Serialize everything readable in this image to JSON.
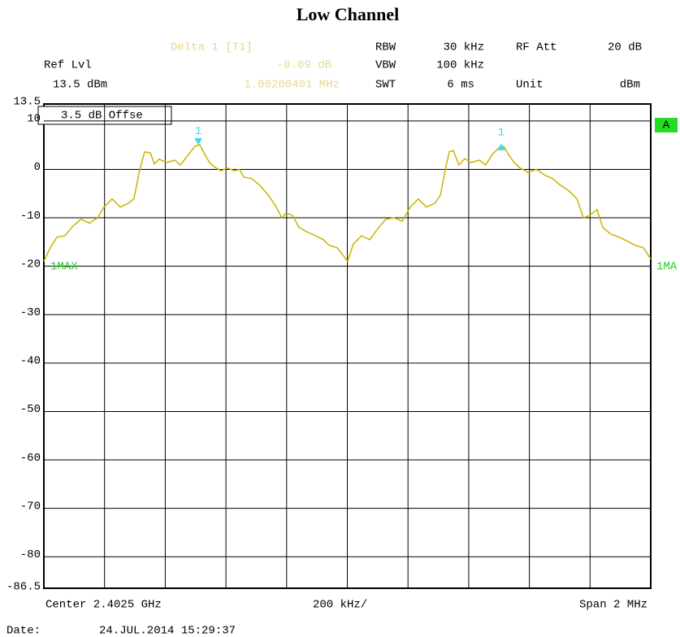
{
  "chart_data": {
    "type": "line",
    "title": "Low Channel",
    "x": [
      2401.5,
      2401.521,
      2401.543,
      2401.57,
      2401.596,
      2401.623,
      2401.65,
      2401.677,
      2401.698,
      2401.725,
      2401.752,
      2401.778,
      2401.797,
      2401.816,
      2401.832,
      2401.851,
      2401.864,
      2401.88,
      2401.904,
      2401.931,
      2401.95,
      2401.977,
      2401.998,
      2402.014,
      2402.03,
      2402.046,
      2402.065,
      2402.084,
      2402.105,
      2402.127,
      2402.145,
      2402.159,
      2402.185,
      2402.212,
      2402.239,
      2402.266,
      2402.284,
      2402.298,
      2402.319,
      2402.341,
      2402.367,
      2402.394,
      2402.421,
      2402.44,
      2402.467,
      2402.501,
      2402.52,
      2402.547,
      2402.574,
      2402.6,
      2402.627,
      2402.654,
      2402.681,
      2402.707,
      2402.734,
      2402.761,
      2402.788,
      2402.807,
      2402.823,
      2402.836,
      2402.849,
      2402.868,
      2402.887,
      2402.908,
      2402.935,
      2402.956,
      2402.978,
      2402.999,
      2403.015,
      2403.031,
      2403.05,
      2403.069,
      2403.096,
      2403.123,
      2403.149,
      2403.176,
      2403.203,
      2403.23,
      2403.257,
      2403.278,
      2403.299,
      2403.323,
      2403.342,
      2403.369,
      2403.396,
      2403.422,
      2403.449,
      2403.476,
      2403.5
    ],
    "values": [
      -19,
      -16.2,
      -14,
      -13.7,
      -11.7,
      -10.3,
      -11.1,
      -10,
      -7.8,
      -6.1,
      -7.8,
      -7,
      -6.1,
      0,
      3.6,
      3.4,
      1.1,
      2.1,
      1.4,
      1.9,
      0.9,
      3.1,
      4.8,
      5.1,
      3.1,
      1.4,
      0.4,
      -0.3,
      0.3,
      -0.3,
      0,
      -1.6,
      -1.9,
      -3.3,
      -5.3,
      -7.8,
      -10,
      -9,
      -9.5,
      -12,
      -12.9,
      -13.7,
      -14.5,
      -15.7,
      -16.2,
      -19,
      -15.4,
      -13.7,
      -14.5,
      -12.3,
      -10.3,
      -10,
      -10.7,
      -7.8,
      -6.1,
      -7.8,
      -7,
      -5.3,
      0,
      3.6,
      3.9,
      0.9,
      2.2,
      1.4,
      1.9,
      0.9,
      3.1,
      4.4,
      4.8,
      3.1,
      1.4,
      0.3,
      -0.6,
      0,
      -1.1,
      -1.9,
      -3.3,
      -4.4,
      -6.1,
      -10,
      -9.5,
      -8.3,
      -12,
      -13.4,
      -14,
      -14.8,
      -15.7,
      -16.2,
      -18.5
    ],
    "color": "#c8b400",
    "xlim": [
      2401.5,
      2403.5
    ],
    "ylim": [
      -86.5,
      13.5
    ],
    "yticks": [
      13.5,
      10,
      0,
      -10,
      -20,
      -30,
      -40,
      -50,
      -60,
      -70,
      -80,
      -86.5
    ],
    "grid": true,
    "markers": [
      {
        "label": "1",
        "x": 2402.009,
        "y": 5.1
      },
      {
        "label": "1",
        "x": 2403.007,
        "y": 4.8
      }
    ],
    "annotations": [
      "Delta 1 [T1]",
      "-0.09 dB",
      "1.00200401 MHz",
      "RBW",
      "30 kHz",
      "RF Att",
      "20 dB",
      "Ref Lvl",
      "VBW",
      "100 kHz",
      "13.5 dBm",
      "SWT",
      "6 ms",
      "Unit",
      "dBm",
      "3.5 dB Offse",
      "A",
      "1MAX",
      "1MA",
      "Center 2.4025 GHz",
      "200 kHz/",
      "Span 2 MHz",
      "Date:",
      "24.JUL.2014  15:29:37"
    ]
  }
}
